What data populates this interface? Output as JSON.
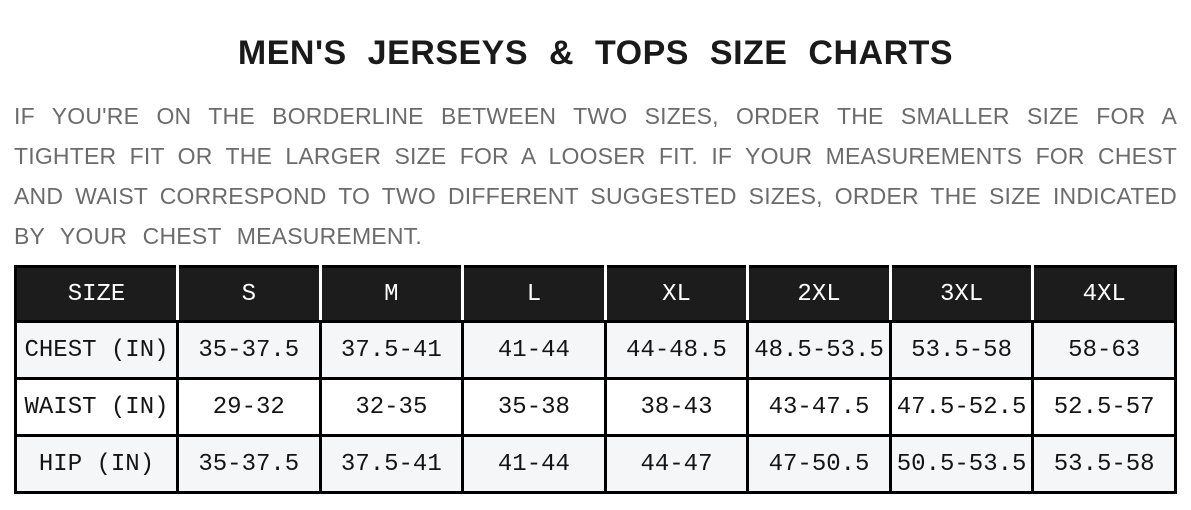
{
  "header": {
    "title": "MEN'S JERSEYS & TOPS SIZE CHARTS"
  },
  "intro": {
    "lines": [
      "IF YOU'RE ON THE BORDERLINE BETWEEN TWO SIZES, ORDER THE SMALLER SIZE FOR A",
      "TIGHTER FIT OR THE LARGER SIZE FOR A LOOSER FIT. IF YOUR MEASUREMENTS FOR CHEST",
      "AND WAIST CORRESPOND TO TWO DIFFERENT SUGGESTED SIZES, ORDER THE SIZE INDICATED",
      "BY YOUR CHEST MEASUREMENT."
    ]
  },
  "size_chart": {
    "columns": [
      "SIZE",
      "S",
      "M",
      "L",
      "XL",
      "2XL",
      "3XL",
      "4XL"
    ],
    "rows": [
      {
        "label": "CHEST (IN)",
        "values": [
          "35-37.5",
          "37.5-41",
          "41-44",
          "44-48.5",
          "48.5-53.5",
          "53.5-58",
          "58-63"
        ]
      },
      {
        "label": "WAIST (IN)",
        "values": [
          "29-32",
          "32-35",
          "35-38",
          "38-43",
          "43-47.5",
          "47.5-52.5",
          "52.5-57"
        ]
      },
      {
        "label": "HIP (IN)",
        "values": [
          "35-37.5",
          "37.5-41",
          "41-44",
          "44-47",
          "47-50.5",
          "50.5-53.5",
          "53.5-58"
        ]
      }
    ]
  },
  "theme": {
    "header_bg": "#1c1c1c",
    "header_text": "#ffffff",
    "header_divider": "#ffffff",
    "border": "#000000",
    "row_alt_bg": "#f5f6f8",
    "row_bg": "#ffffff",
    "title_color": "#1a1a1a",
    "intro_color": "#6b6b6b",
    "page_bg": "#ffffff"
  }
}
